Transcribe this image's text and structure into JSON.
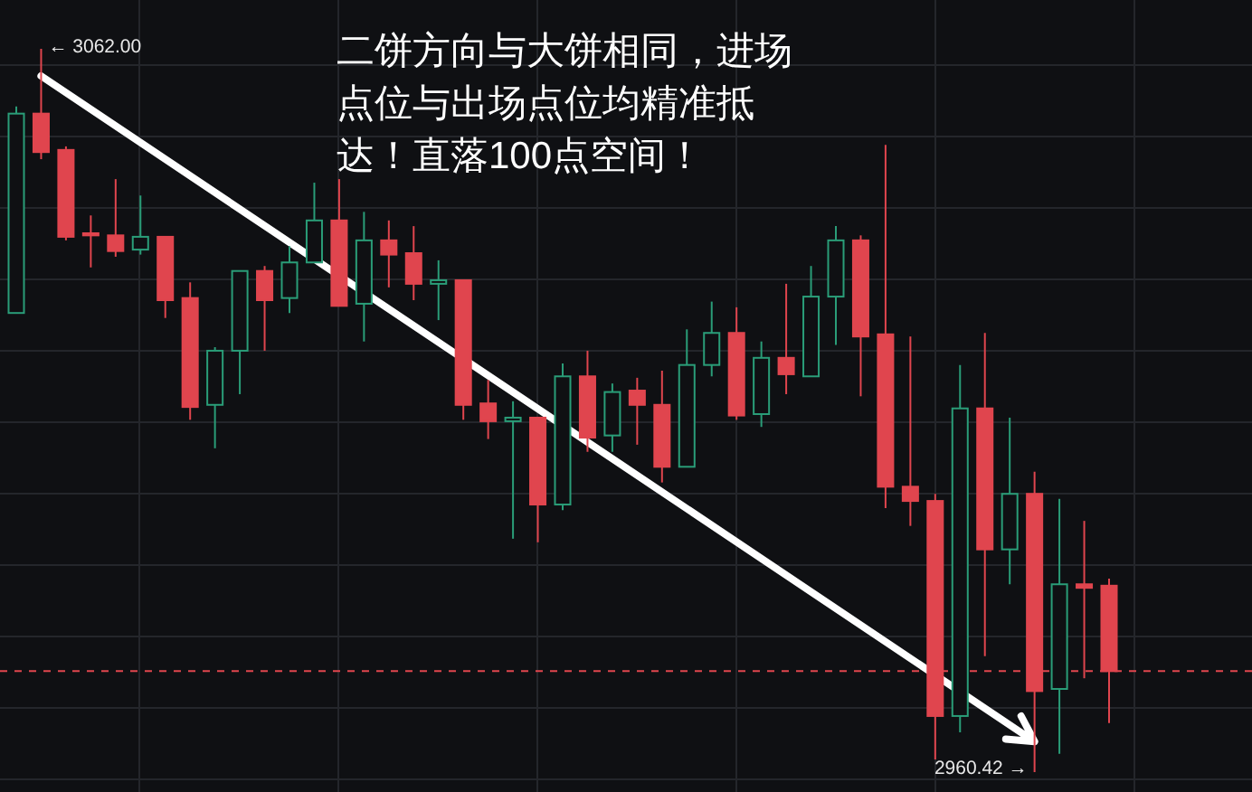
{
  "chart_data": {
    "type": "candlestick",
    "title": "二饼方向与大饼相同，进场点位与出场点位均精准抵达！直落100点空间！",
    "categories": [
      null,
      null,
      null,
      null,
      null,
      null,
      null,
      null,
      null,
      null,
      null,
      null,
      null,
      null,
      null,
      null,
      null,
      null,
      null,
      null,
      null,
      null,
      null,
      null,
      null,
      null,
      null,
      null,
      null,
      null,
      null,
      null,
      null,
      null,
      null,
      null,
      null,
      null,
      null,
      null,
      null,
      null,
      null,
      null,
      null
    ],
    "ohlc": [
      [
        3024.9,
        3053.9,
        3024.9,
        3052.9
      ],
      [
        3052.9,
        3062.0,
        3046.5,
        3047.5
      ],
      [
        3047.8,
        3048.3,
        3035.1,
        3035.6
      ],
      [
        3036.1,
        3038.6,
        3031.3,
        3035.8
      ],
      [
        3035.8,
        3043.7,
        3032.8,
        3033.6
      ],
      [
        3033.8,
        3041.4,
        3033.1,
        3035.6
      ],
      [
        3035.6,
        3035.6,
        3024.2,
        3026.7
      ],
      [
        3027.0,
        3029.2,
        3009.9,
        3011.7
      ],
      [
        3012.0,
        3020.1,
        3005.9,
        3019.6
      ],
      [
        3019.6,
        3030.8,
        3013.5,
        3030.8
      ],
      [
        3030.8,
        3031.5,
        3019.6,
        3026.7
      ],
      [
        3027.0,
        3034.3,
        3024.9,
        3032.0
      ],
      [
        3032.0,
        3043.2,
        3032.0,
        3037.9
      ],
      [
        3037.9,
        3043.7,
        3025.9,
        3025.9
      ],
      [
        3026.2,
        3039.1,
        3020.9,
        3035.1
      ],
      [
        3035.1,
        3037.9,
        3028.5,
        3033.1
      ],
      [
        3033.3,
        3037.1,
        3026.7,
        3029.0
      ],
      [
        3029.0,
        3032.3,
        3023.9,
        3029.5
      ],
      [
        3029.5,
        3029.5,
        3009.9,
        3012.0
      ],
      [
        3012.2,
        3015.5,
        3007.2,
        3009.7
      ],
      [
        3009.7,
        3012.5,
        2993.2,
        3010.2
      ],
      [
        3010.2,
        3010.2,
        2992.7,
        2998.0
      ],
      [
        2998.0,
        3017.8,
        2997.2,
        3016.0
      ],
      [
        3016.0,
        3019.6,
        3005.4,
        3007.4
      ],
      [
        3007.7,
        3015.0,
        3005.4,
        3013.8
      ],
      [
        3014.0,
        3015.8,
        3006.4,
        3012.0
      ],
      [
        3012.0,
        3016.8,
        3001.1,
        3003.3
      ],
      [
        3003.3,
        3022.6,
        3003.3,
        3017.6
      ],
      [
        3017.6,
        3026.5,
        3016.0,
        3022.1
      ],
      [
        3022.1,
        3025.7,
        3009.9,
        3010.5
      ],
      [
        3010.7,
        3020.9,
        3008.9,
        3018.6
      ],
      [
        3018.6,
        3029.0,
        3013.5,
        3016.3
      ],
      [
        3016.0,
        3031.5,
        3016.0,
        3027.2
      ],
      [
        3027.2,
        3037.1,
        3020.4,
        3035.1
      ],
      [
        3035.1,
        3035.8,
        3013.2,
        3021.6
      ],
      [
        3021.9,
        3048.5,
        2997.5,
        3000.5
      ],
      [
        3000.5,
        3021.6,
        2995.0,
        2998.5
      ],
      [
        2998.5,
        2999.5,
        2962.2,
        2968.3
      ],
      [
        2968.3,
        3017.6,
        2966.0,
        3011.5
      ],
      [
        3011.5,
        3022.1,
        2976.7,
        2991.7
      ],
      [
        2991.7,
        3010.2,
        2986.8,
        2999.5
      ],
      [
        2999.5,
        3002.6,
        2960.42,
        2971.8
      ],
      [
        2972.1,
        2998.8,
        2963.0,
        2986.8
      ],
      [
        2986.8,
        2995.7,
        2973.6,
        2986.3
      ],
      [
        2986.6,
        2987.6,
        2967.3,
        2974.6
      ]
    ],
    "series": [
      {
        "type": "line",
        "color": "#ffffff",
        "values": [
          null,
          3058.2,
          null,
          null,
          null,
          null,
          null,
          null,
          null,
          null,
          null,
          null,
          null,
          null,
          null,
          null,
          null,
          null,
          null,
          null,
          null,
          null,
          null,
          null,
          null,
          null,
          null,
          null,
          null,
          null,
          null,
          null,
          null,
          null,
          null,
          null,
          null,
          null,
          null,
          null,
          null,
          2964.7,
          null,
          null,
          null
        ]
      }
    ],
    "ref_lines": [
      {
        "axis": "y",
        "value": 2974.6,
        "color": "#e0454e",
        "line_style": "dashed"
      }
    ],
    "annotations": [
      "← 3062.00",
      "2960.42 →"
    ],
    "grid": true
  }
}
